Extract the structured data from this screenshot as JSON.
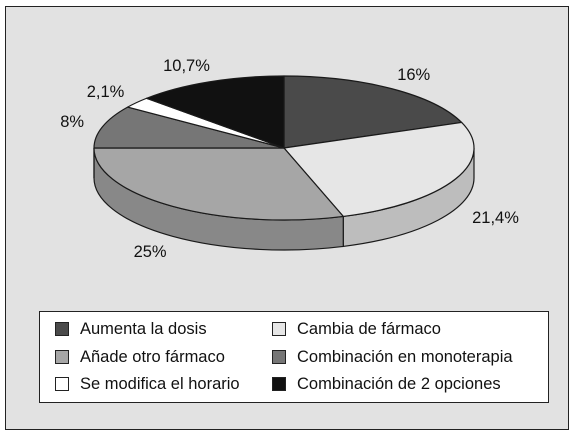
{
  "chart_data": {
    "type": "pie",
    "title": "",
    "categories": [
      "Aumenta la dosis",
      "Cambia de fármaco",
      "Añade otro fármaco",
      "Combinación en monoterapia",
      "Se modifica el horario",
      "Combinación de 2 opciones"
    ],
    "values": [
      16,
      21.4,
      25,
      8,
      2.1,
      10.7
    ],
    "value_labels": [
      "16%",
      "21,4%",
      "25%",
      "8%",
      "2,1%",
      "10,7%"
    ],
    "colors": [
      "#4a4a4a",
      "#e6e6e6",
      "#a6a6a6",
      "#767676",
      "#ffffff",
      "#111111"
    ],
    "legend_position": "bottom",
    "style": "3d"
  }
}
